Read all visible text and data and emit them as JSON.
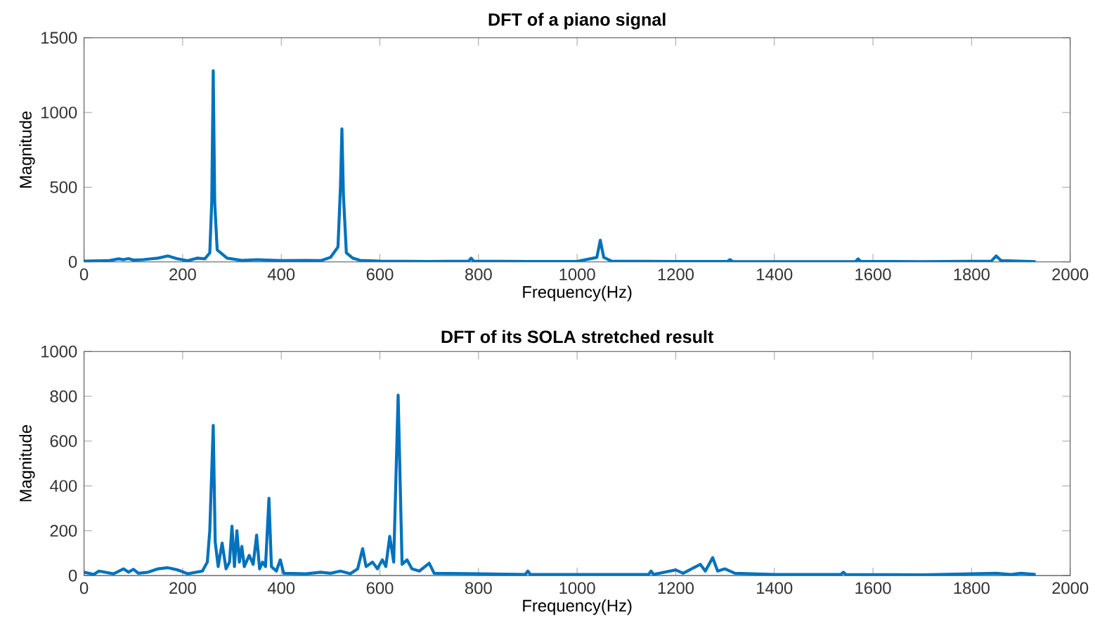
{
  "chart_data": [
    {
      "type": "line",
      "title": "DFT of a piano signal",
      "xlabel": "Frequency(Hz)",
      "ylabel": "Magnitude",
      "xlim": [
        0,
        2000
      ],
      "ylim": [
        0,
        1500
      ],
      "xticks": [
        0,
        200,
        400,
        600,
        800,
        1000,
        1200,
        1400,
        1600,
        1800,
        2000
      ],
      "yticks": [
        0,
        500,
        1000,
        1500
      ],
      "series": [
        {
          "color": "#0072bd",
          "x": [
            0,
            50,
            70,
            80,
            90,
            100,
            120,
            150,
            170,
            190,
            210,
            230,
            245,
            255,
            259,
            262,
            265,
            270,
            290,
            320,
            350,
            400,
            450,
            480,
            500,
            515,
            520,
            523,
            526,
            532,
            545,
            560,
            600,
            700,
            780,
            785,
            790,
            900,
            1000,
            1040,
            1047,
            1054,
            1070,
            1200,
            1305,
            1310,
            1315,
            1400,
            1565,
            1570,
            1575,
            1700,
            1840,
            1850,
            1860,
            1930
          ],
          "values": [
            5,
            8,
            20,
            15,
            22,
            12,
            15,
            25,
            40,
            20,
            8,
            25,
            20,
            60,
            400,
            1280,
            400,
            80,
            25,
            10,
            15,
            8,
            10,
            8,
            30,
            100,
            500,
            890,
            450,
            60,
            25,
            10,
            5,
            3,
            5,
            25,
            5,
            3,
            3,
            30,
            145,
            30,
            5,
            3,
            3,
            15,
            3,
            2,
            3,
            20,
            3,
            2,
            5,
            40,
            8,
            2
          ]
        }
      ]
    },
    {
      "type": "line",
      "title": "DFT of its SOLA stretched result",
      "xlabel": "Frequency(Hz)",
      "ylabel": "Magnitude",
      "xlim": [
        0,
        2000
      ],
      "ylim": [
        0,
        1000
      ],
      "xticks": [
        0,
        200,
        400,
        600,
        800,
        1000,
        1200,
        1400,
        1600,
        1800,
        2000
      ],
      "yticks": [
        0,
        200,
        400,
        600,
        800,
        1000
      ],
      "series": [
        {
          "color": "#0072bd",
          "x": [
            0,
            20,
            30,
            60,
            80,
            90,
            100,
            110,
            130,
            150,
            170,
            190,
            210,
            240,
            250,
            255,
            262,
            266,
            272,
            280,
            288,
            295,
            300,
            305,
            310,
            315,
            320,
            325,
            335,
            343,
            350,
            356,
            362,
            368,
            375,
            380,
            390,
            398,
            405,
            450,
            480,
            500,
            520,
            540,
            555,
            565,
            572,
            585,
            595,
            605,
            612,
            620,
            628,
            637,
            645,
            655,
            665,
            680,
            700,
            710,
            800,
            895,
            900,
            905,
            1000,
            1100,
            1145,
            1150,
            1155,
            1200,
            1215,
            1250,
            1260,
            1275,
            1285,
            1300,
            1320,
            1400,
            1535,
            1540,
            1545,
            1700,
            1850,
            1880,
            1900,
            1930
          ],
          "values": [
            15,
            5,
            20,
            8,
            30,
            15,
            28,
            10,
            15,
            30,
            35,
            25,
            8,
            20,
            60,
            200,
            670,
            150,
            40,
            145,
            30,
            60,
            220,
            40,
            200,
            60,
            130,
            40,
            90,
            50,
            180,
            30,
            60,
            40,
            345,
            40,
            20,
            70,
            10,
            8,
            15,
            10,
            20,
            8,
            30,
            120,
            40,
            60,
            30,
            70,
            40,
            175,
            60,
            805,
            50,
            70,
            30,
            20,
            55,
            10,
            8,
            5,
            20,
            5,
            5,
            5,
            5,
            20,
            5,
            25,
            10,
            50,
            20,
            80,
            20,
            30,
            10,
            5,
            5,
            15,
            5,
            3,
            10,
            5,
            10,
            5
          ]
        }
      ]
    }
  ]
}
